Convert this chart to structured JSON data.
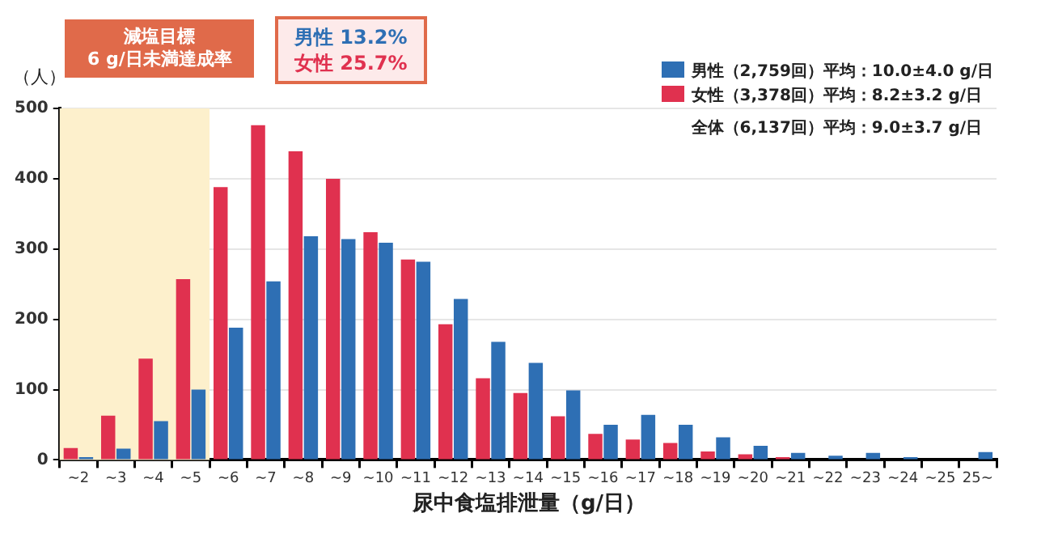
{
  "chart_data": {
    "type": "bar",
    "xlabel": "尿中食塩排泄量（g/日）",
    "ylabel": "（人）",
    "categories": [
      "~2",
      "~3",
      "~4",
      "~5",
      "~6",
      "~7",
      "~8",
      "~9",
      "~10",
      "~11",
      "~12",
      "~13",
      "~14",
      "~15",
      "~16",
      "~17",
      "~18",
      "~19",
      "~20",
      "~21",
      "~22",
      "~23",
      "~24",
      "~25",
      "25~"
    ],
    "series": [
      {
        "name": "男性（2,759回）平均：10.0±4.0 g/日",
        "color": "#2e6fb4",
        "values": [
          4,
          16,
          55,
          100,
          188,
          254,
          318,
          314,
          309,
          282,
          229,
          168,
          138,
          99,
          50,
          64,
          50,
          32,
          20,
          10,
          6,
          10,
          4,
          0,
          11
        ]
      },
      {
        "name": "女性（3,378回）平均：8.2±3.2 g/日",
        "color": "#e0314f",
        "values": [
          17,
          63,
          144,
          257,
          388,
          476,
          439,
          400,
          324,
          285,
          193,
          116,
          95,
          62,
          37,
          29,
          24,
          12,
          8,
          4,
          0,
          0,
          0,
          0,
          0
        ]
      }
    ],
    "ylim": [
      0,
      500
    ],
    "yticks": [
      0,
      100,
      200,
      300,
      400,
      500
    ],
    "grid": "y",
    "legend": "top right",
    "bands": [
      {
        "axis": "x",
        "from": "~2",
        "to": "~5",
        "color": "#fdf0cc"
      }
    ],
    "annotations": [
      "全体（6,137回）平均：9.0±3.7 g/日",
      "減塩目標\n6 g/日未満達成率",
      "男性 13.2%",
      "女性 25.7%"
    ]
  }
}
